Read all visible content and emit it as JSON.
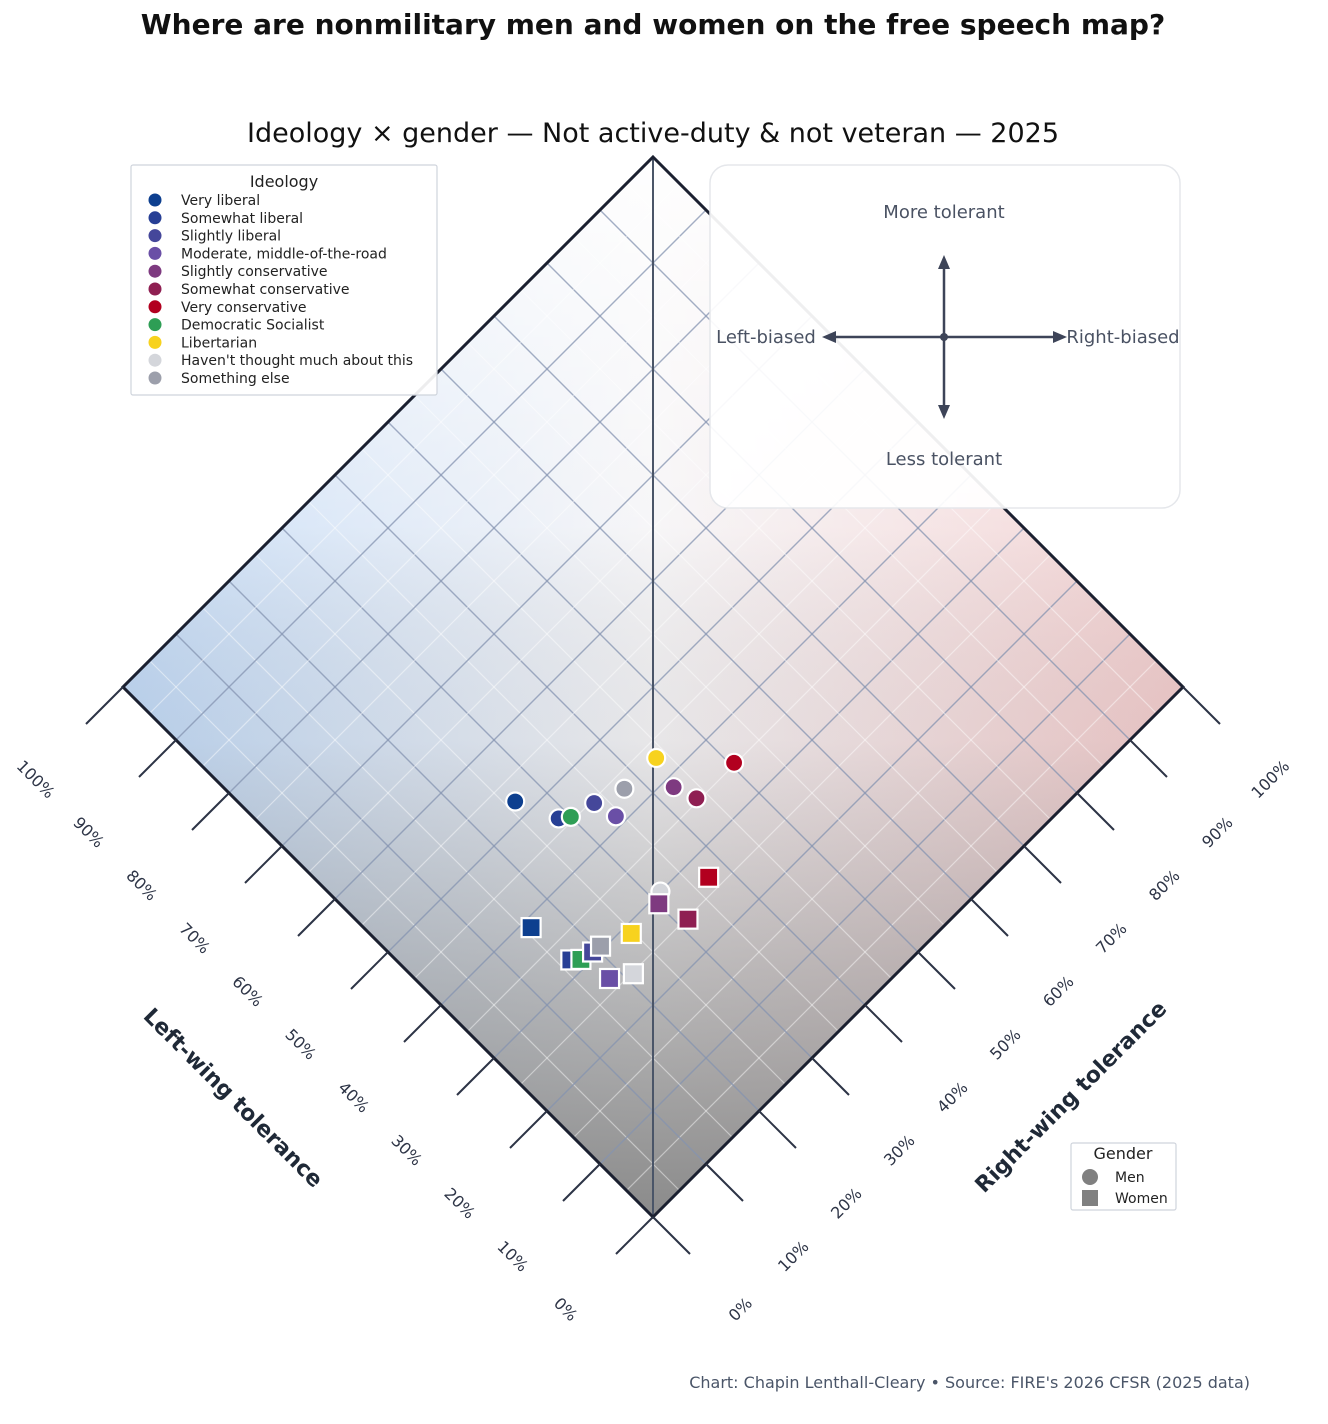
{
  "title": "Where are nonmilitary men and women on the free speech map?",
  "subtitle": "Ideology × gender — Not active-duty & not veteran — 2025",
  "credit": "Chart: Chapin Lenthall-Cleary • Source: FIRE's 2026 CFSR (2025 data)",
  "compass": {
    "top": "More tolerant",
    "bottom": "Less tolerant",
    "left": "Left-biased",
    "right": "Right-biased"
  },
  "legend_ideology": {
    "title": "Ideology",
    "items": [
      {
        "label": "Very liberal",
        "color": "#0d3f8f"
      },
      {
        "label": "Somewhat liberal",
        "color": "#273f95"
      },
      {
        "label": "Slightly liberal",
        "color": "#45479a"
      },
      {
        "label": "Moderate, middle-of-the-road",
        "color": "#6a4fa6"
      },
      {
        "label": "Slightly conservative",
        "color": "#7e3a80"
      },
      {
        "label": "Somewhat conservative",
        "color": "#8f1f52"
      },
      {
        "label": "Very conservative",
        "color": "#b2001f"
      },
      {
        "label": "Democratic Socialist",
        "color": "#2e9e55"
      },
      {
        "label": "Libertarian",
        "color": "#f7d21e"
      },
      {
        "label": "Haven't thought much about this",
        "color": "#d4d6db"
      },
      {
        "label": "Something else",
        "color": "#9c9fab"
      }
    ]
  },
  "legend_gender": {
    "title": "Gender",
    "items": [
      {
        "label": "Men",
        "shape": "circle"
      },
      {
        "label": "Women",
        "shape": "square"
      }
    ]
  },
  "chart_data": {
    "type": "scatter",
    "projection": "diamond",
    "xlabel": "Left-wing tolerance",
    "ylabel": "Right-wing tolerance",
    "xlim": [
      0,
      100
    ],
    "ylim": [
      0,
      100
    ],
    "ticks": [
      "0%",
      "10%",
      "20%",
      "30%",
      "40%",
      "50%",
      "60%",
      "70%",
      "80%",
      "90%",
      "100%"
    ],
    "grid": true,
    "background_gradient": {
      "left": "#bcd6f5",
      "right": "#f1c8c8",
      "bottom": "#8c8c8c",
      "top": "#ffffff"
    },
    "points": [
      {
        "ideology": "Very liberal",
        "gender": "Men",
        "left": 52.2,
        "right": 26.2
      },
      {
        "ideology": "Somewhat liberal",
        "gender": "Men",
        "left": 46.5,
        "right": 28.7
      },
      {
        "ideology": "Democratic Socialist",
        "gender": "Men",
        "left": 45.5,
        "right": 30.0
      },
      {
        "ideology": "Slightly liberal",
        "gender": "Men",
        "left": 44.6,
        "right": 33.5
      },
      {
        "ideology": "Moderate, middle-of-the-road",
        "gender": "Men",
        "left": 41.3,
        "right": 34.3
      },
      {
        "ideology": "Something else",
        "gender": "Men",
        "left": 43.1,
        "right": 37.7
      },
      {
        "ideology": "Libertarian",
        "gender": "Men",
        "left": 43.0,
        "right": 43.6
      },
      {
        "ideology": "Slightly conservative",
        "gender": "Men",
        "left": 38.6,
        "right": 42.5
      },
      {
        "ideology": "Somewhat conservative",
        "gender": "Men",
        "left": 35.4,
        "right": 43.6
      },
      {
        "ideology": "Very conservative",
        "gender": "Men",
        "left": 35.2,
        "right": 50.5
      },
      {
        "ideology": "Haven't thought much about this",
        "gender": "Men",
        "left": 30.0,
        "right": 31.4
      },
      {
        "ideology": "Very liberal",
        "gender": "Women",
        "left": 38.8,
        "right": 15.8
      },
      {
        "ideology": "Somewhat liberal",
        "gender": "Women",
        "left": 32.0,
        "right": 16.5
      },
      {
        "ideology": "Democratic Socialist",
        "gender": "Women",
        "left": 31.1,
        "right": 17.5
      },
      {
        "ideology": "Slightly liberal",
        "gender": "Women",
        "left": 30.7,
        "right": 19.3
      },
      {
        "ideology": "Something else",
        "gender": "Women",
        "left": 30.5,
        "right": 20.6
      },
      {
        "ideology": "Libertarian",
        "gender": "Women",
        "left": 28.8,
        "right": 24.7
      },
      {
        "ideology": "Moderate, middle-of-the-road",
        "gender": "Women",
        "left": 26.6,
        "right": 18.4
      },
      {
        "ideology": "Haven't thought much about this",
        "gender": "Women",
        "left": 24.8,
        "right": 21.1
      },
      {
        "ideology": "Slightly conservative",
        "gender": "Women",
        "left": 29.0,
        "right": 30.1
      },
      {
        "ideology": "Somewhat conservative",
        "gender": "Women",
        "left": 24.8,
        "right": 31.4
      },
      {
        "ideology": "Very conservative",
        "gender": "Women",
        "left": 26.8,
        "right": 37.3
      }
    ]
  }
}
